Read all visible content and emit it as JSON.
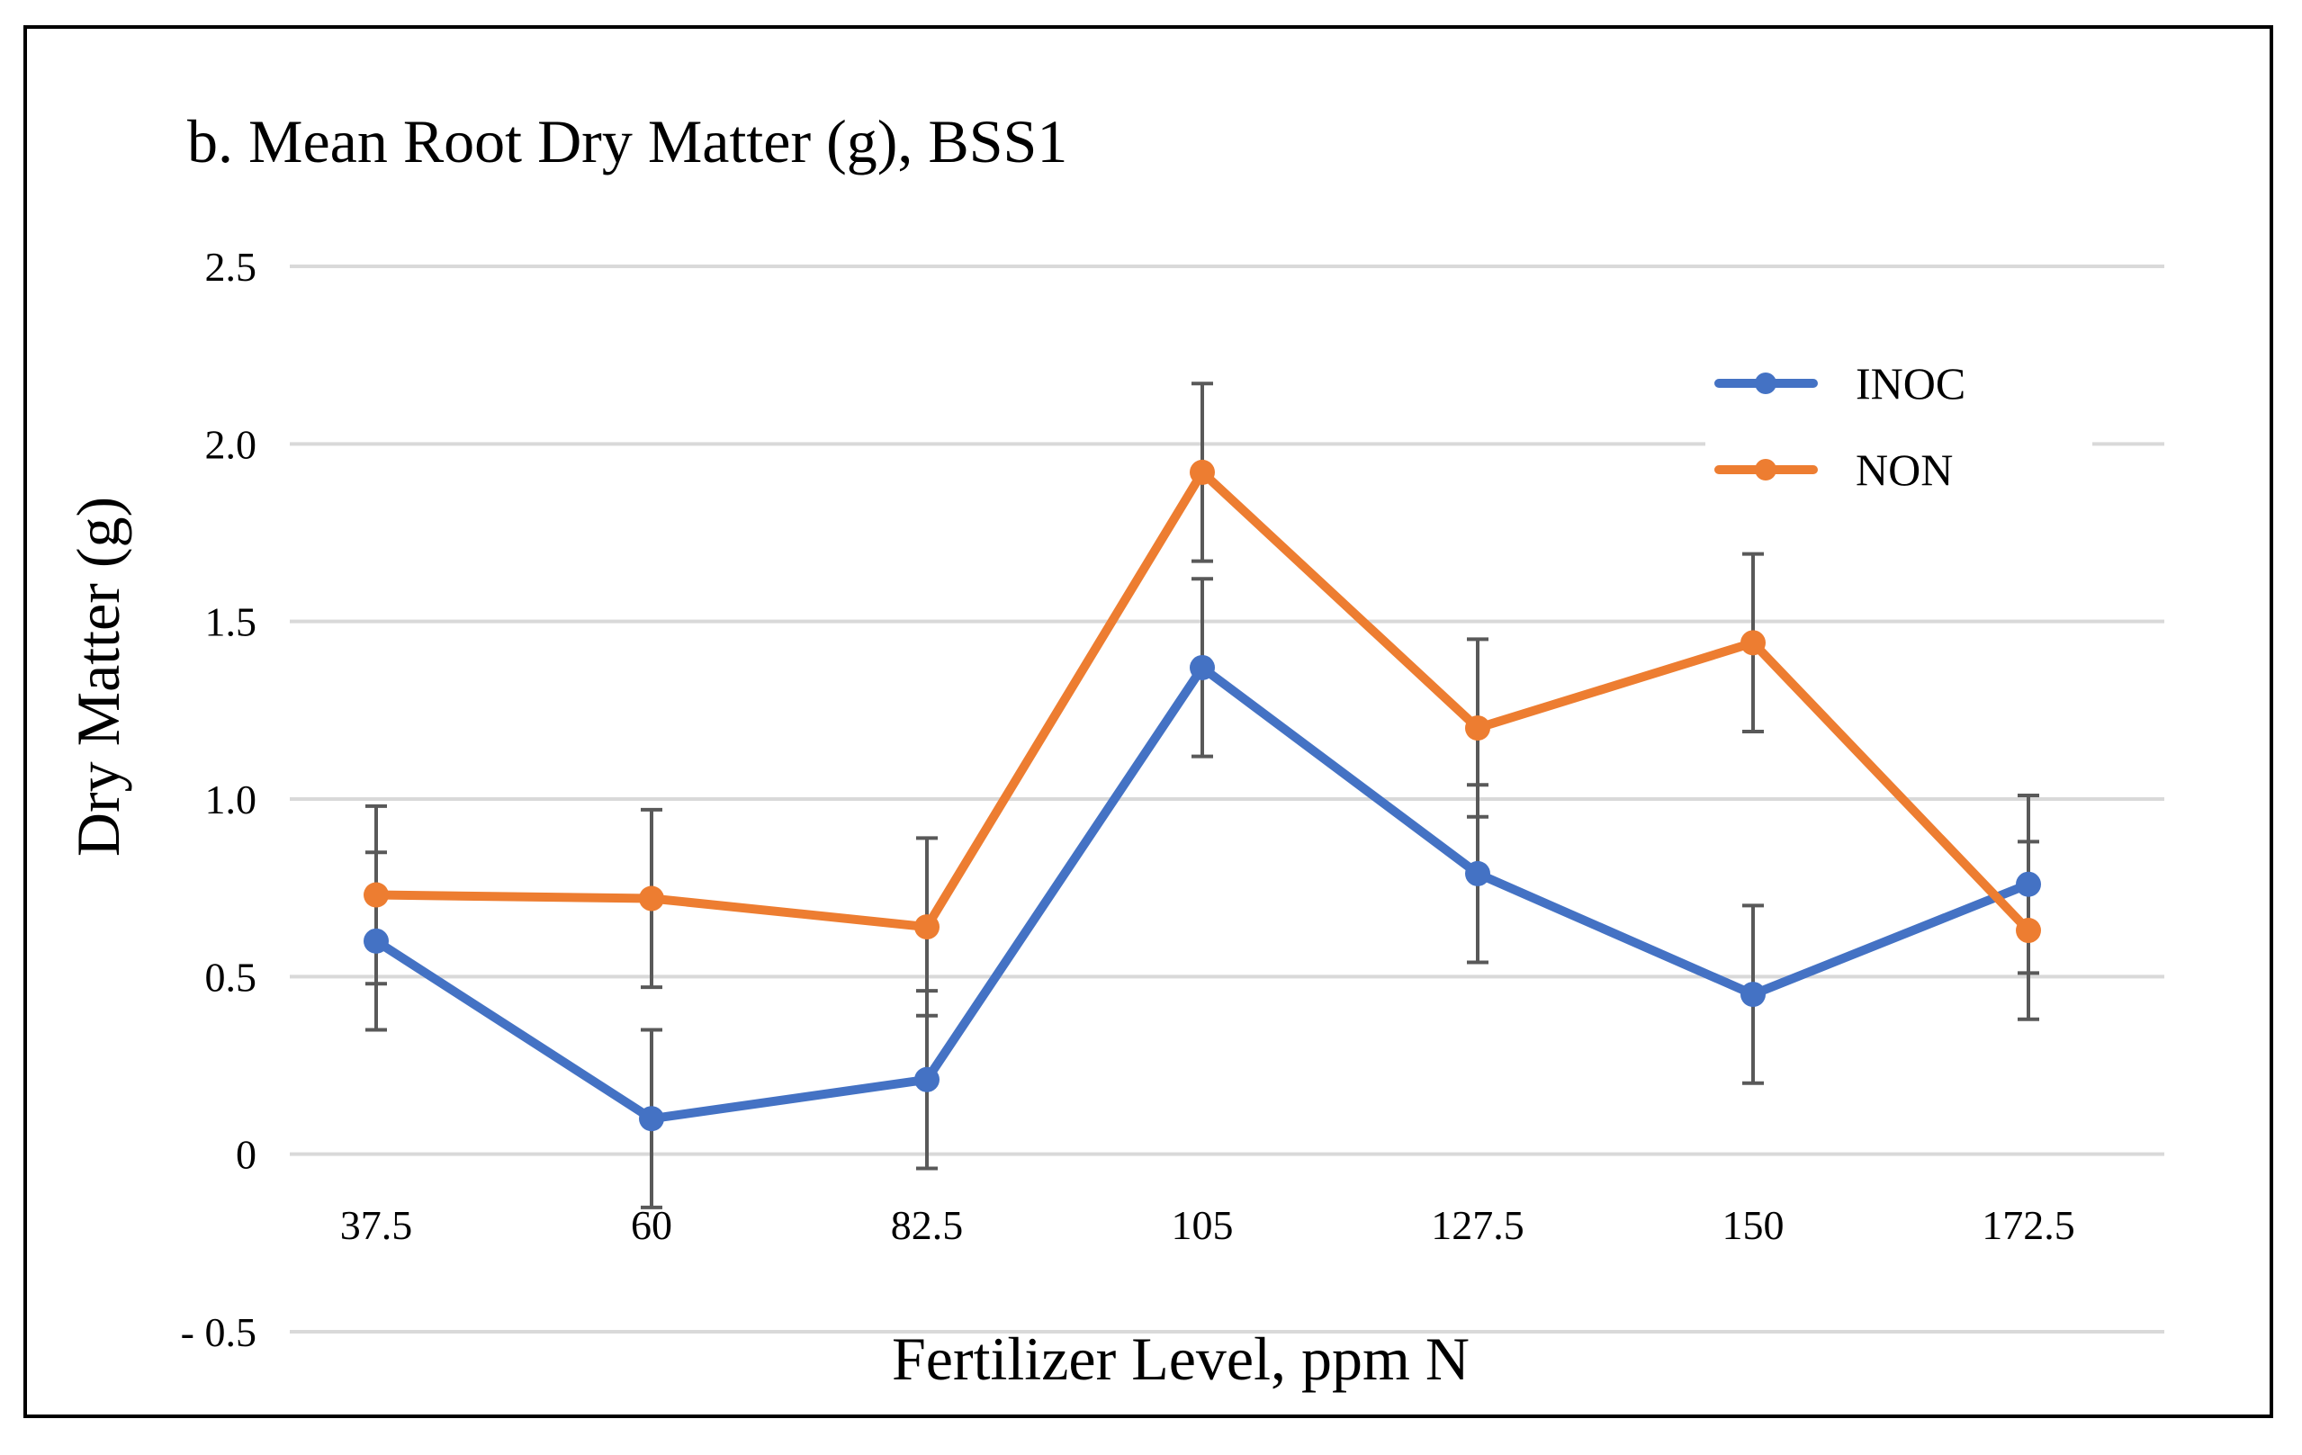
{
  "chart_data": {
    "type": "line",
    "title": "b. Mean Root Dry Matter (g), BSS1",
    "xlabel": "Fertilizer Level, ppm N",
    "ylabel": "Dry Matter (g)",
    "categories": [
      "37.5",
      "60",
      "82.5",
      "105",
      "127.5",
      "150",
      "172.5"
    ],
    "y_ticks": [
      {
        "value": 2.5,
        "label": "2.5"
      },
      {
        "value": 2.0,
        "label": "2.0"
      },
      {
        "value": 1.5,
        "label": "1.5"
      },
      {
        "value": 1.0,
        "label": "1.0"
      },
      {
        "value": 0.5,
        "label": "0.5"
      },
      {
        "value": 0,
        "label": "0"
      },
      {
        "value": -0.5,
        "label": "- 0.5"
      }
    ],
    "ylim": [
      -0.5,
      2.5
    ],
    "grid": true,
    "legend_position": "top-right",
    "series": [
      {
        "name": "INOC",
        "color": "#4472C4",
        "values": [
          0.6,
          0.1,
          0.21,
          1.37,
          0.79,
          0.45,
          0.76
        ],
        "error": [
          0.25,
          0.25,
          0.25,
          0.25,
          0.25,
          0.25,
          0.25
        ]
      },
      {
        "name": "NON",
        "color": "#ED7D31",
        "values": [
          0.73,
          0.72,
          0.64,
          1.92,
          1.2,
          1.44,
          0.63
        ],
        "error": [
          0.25,
          0.25,
          0.25,
          0.25,
          0.25,
          0.25,
          0.25
        ]
      }
    ],
    "gridline_color": "#D9D9D9",
    "error_bar_color": "#595959"
  }
}
